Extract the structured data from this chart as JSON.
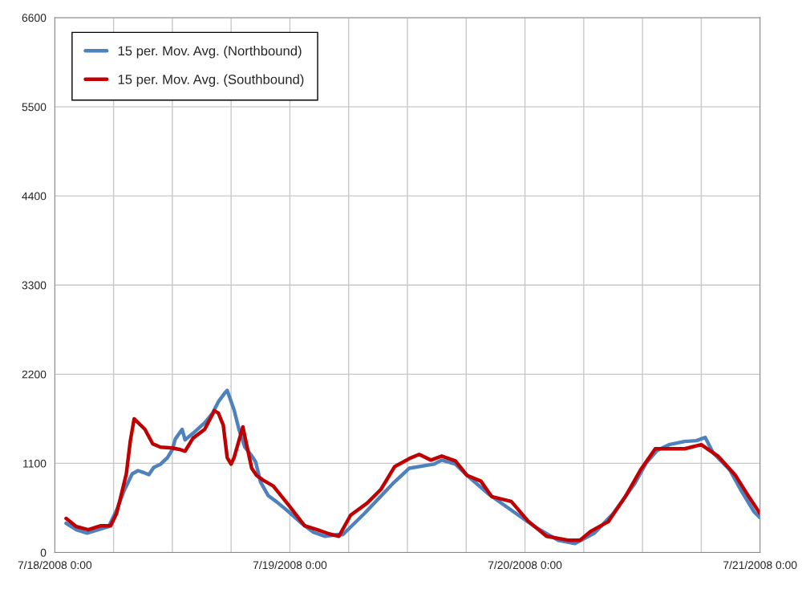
{
  "chart_data": {
    "type": "line",
    "xlim": [
      "2008-07-18T00:00",
      "2008-07-21T00:00"
    ],
    "xticks": [
      {
        "value": "2008-07-18T00:00",
        "label": "7/18/2008 0:00"
      },
      {
        "value": "2008-07-18T06:00",
        "label": null
      },
      {
        "value": "2008-07-18T12:00",
        "label": null
      },
      {
        "value": "2008-07-18T18:00",
        "label": null
      },
      {
        "value": "2008-07-19T00:00",
        "label": "7/19/2008 0:00"
      },
      {
        "value": "2008-07-19T06:00",
        "label": null
      },
      {
        "value": "2008-07-19T12:00",
        "label": null
      },
      {
        "value": "2008-07-19T18:00",
        "label": null
      },
      {
        "value": "2008-07-20T00:00",
        "label": "7/20/2008 0:00"
      },
      {
        "value": "2008-07-20T06:00",
        "label": null
      },
      {
        "value": "2008-07-20T12:00",
        "label": null
      },
      {
        "value": "2008-07-20T18:00",
        "label": null
      },
      {
        "value": "2008-07-21T00:00",
        "label": "7/21/2008 0:00"
      }
    ],
    "ylim": [
      0,
      6600
    ],
    "yticks": [
      0,
      1100,
      2200,
      3300,
      4400,
      5500,
      6600
    ],
    "grid": true,
    "legend": "top left",
    "marker": "none",
    "line_style": "solid",
    "series": [
      {
        "name": "15 per. Mov. Avg. (Northbound)",
        "color": "#4f81bd",
        "x": [
          "2008-07-18T01:09",
          "2008-07-18T02:12",
          "2008-07-18T03:18",
          "2008-07-18T04:42",
          "2008-07-18T05:30",
          "2008-07-18T06:18",
          "2008-07-18T07:06",
          "2008-07-18T07:54",
          "2008-07-18T08:30",
          "2008-07-18T09:00",
          "2008-07-18T09:36",
          "2008-07-18T10:06",
          "2008-07-18T10:48",
          "2008-07-18T11:30",
          "2008-07-18T12:00",
          "2008-07-18T12:18",
          "2008-07-18T13:00",
          "2008-07-18T13:18",
          "2008-07-18T14:06",
          "2008-07-18T15:18",
          "2008-07-18T16:06",
          "2008-07-18T16:42",
          "2008-07-18T17:18",
          "2008-07-18T17:36",
          "2008-07-18T18:18",
          "2008-07-18T18:48",
          "2008-07-18T19:24",
          "2008-07-18T20:00",
          "2008-07-18T20:30",
          "2008-07-18T21:00",
          "2008-07-18T21:48",
          "2008-07-18T22:42",
          "2008-07-18T23:54",
          "2008-07-19T01:06",
          "2008-07-19T02:24",
          "2008-07-19T03:36",
          "2008-07-19T04:48",
          "2008-07-19T05:24",
          "2008-07-19T07:36",
          "2008-07-19T10:30",
          "2008-07-19T12:12",
          "2008-07-19T14:42",
          "2008-07-19T15:30",
          "2008-07-19T16:54",
          "2008-07-19T18:06",
          "2008-07-19T20:24",
          "2008-07-19T23:06",
          "2008-07-20T01:06",
          "2008-07-20T03:24",
          "2008-07-20T05:06",
          "2008-07-20T07:06",
          "2008-07-20T09:00",
          "2008-07-20T11:12",
          "2008-07-20T12:24",
          "2008-07-20T13:30",
          "2008-07-20T14:42",
          "2008-07-20T16:18",
          "2008-07-20T17:30",
          "2008-07-20T18:24",
          "2008-07-20T19:12",
          "2008-07-20T20:54",
          "2008-07-20T22:00",
          "2008-07-20T23:24",
          "2008-07-21T00:00"
        ],
        "values": [
          360,
          280,
          240,
          290,
          320,
          520,
          770,
          970,
          1010,
          990,
          960,
          1050,
          1090,
          1170,
          1270,
          1400,
          1520,
          1390,
          1470,
          1600,
          1720,
          1860,
          1960,
          2000,
          1760,
          1520,
          1300,
          1210,
          1120,
          870,
          700,
          620,
          500,
          370,
          250,
          200,
          220,
          220,
          480,
          850,
          1040,
          1090,
          1140,
          1090,
          950,
          710,
          480,
          310,
          150,
          110,
          240,
          480,
          850,
          1110,
          1260,
          1330,
          1370,
          1380,
          1420,
          1230,
          1020,
          780,
          500,
          430
        ]
      },
      {
        "name": "15 per. Mov. Avg. (Southbound)",
        "color": "#c00000",
        "x": [
          "2008-07-18T01:09",
          "2008-07-18T02:12",
          "2008-07-18T03:24",
          "2008-07-18T04:42",
          "2008-07-18T05:42",
          "2008-07-18T06:18",
          "2008-07-18T06:42",
          "2008-07-18T07:18",
          "2008-07-18T07:42",
          "2008-07-18T08:06",
          "2008-07-18T09:12",
          "2008-07-18T10:00",
          "2008-07-18T10:48",
          "2008-07-18T12:00",
          "2008-07-18T12:48",
          "2008-07-18T13:18",
          "2008-07-18T14:06",
          "2008-07-18T15:18",
          "2008-07-18T16:18",
          "2008-07-18T16:42",
          "2008-07-18T17:12",
          "2008-07-18T17:36",
          "2008-07-18T18:00",
          "2008-07-18T18:18",
          "2008-07-18T19:12",
          "2008-07-18T19:36",
          "2008-07-18T20:06",
          "2008-07-18T20:36",
          "2008-07-18T21:18",
          "2008-07-18T22:18",
          "2008-07-18T23:54",
          "2008-07-19T01:30",
          "2008-07-19T02:48",
          "2008-07-19T04:00",
          "2008-07-19T05:00",
          "2008-07-19T06:12",
          "2008-07-19T07:54",
          "2008-07-19T09:18",
          "2008-07-19T10:42",
          "2008-07-19T12:12",
          "2008-07-19T13:12",
          "2008-07-19T14:24",
          "2008-07-19T15:30",
          "2008-07-19T16:54",
          "2008-07-19T18:06",
          "2008-07-19T19:30",
          "2008-07-19T20:36",
          "2008-07-19T22:36",
          "2008-07-20T00:18",
          "2008-07-20T02:12",
          "2008-07-20T04:30",
          "2008-07-20T05:36",
          "2008-07-20T06:42",
          "2008-07-20T08:30",
          "2008-07-20T10:12",
          "2008-07-20T11:48",
          "2008-07-20T13:18",
          "2008-07-20T14:42",
          "2008-07-20T16:18",
          "2008-07-20T18:00",
          "2008-07-20T19:42",
          "2008-07-20T21:30",
          "2008-07-20T22:54",
          "2008-07-21T00:00"
        ],
        "values": [
          420,
          320,
          280,
          330,
          330,
          480,
          670,
          970,
          1370,
          1650,
          1520,
          1340,
          1300,
          1290,
          1270,
          1250,
          1410,
          1520,
          1750,
          1720,
          1570,
          1170,
          1090,
          1170,
          1550,
          1320,
          1040,
          950,
          890,
          820,
          580,
          330,
          280,
          230,
          200,
          460,
          610,
          780,
          1060,
          1160,
          1210,
          1140,
          1190,
          1130,
          950,
          880,
          690,
          630,
          390,
          200,
          150,
          150,
          260,
          380,
          680,
          1020,
          1280,
          1280,
          1280,
          1330,
          1190,
          950,
          680,
          480
        ]
      }
    ]
  }
}
